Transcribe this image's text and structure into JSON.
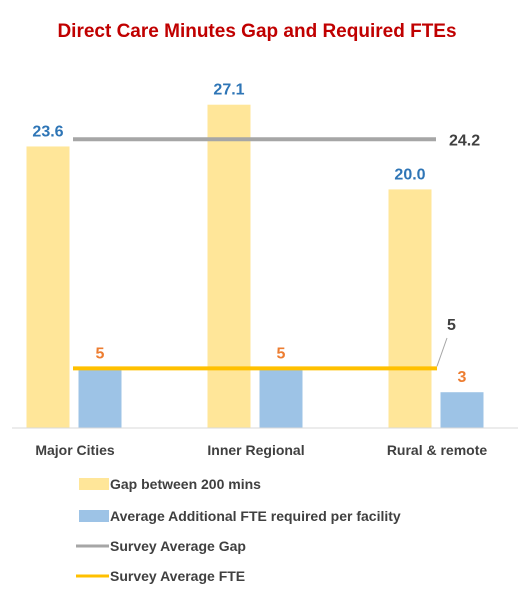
{
  "chart_data": {
    "type": "bar",
    "title": "Direct Care Minutes Gap and Required FTEs",
    "categories": [
      "Major Cities",
      "Inner Regional",
      "Rural & remote"
    ],
    "series": [
      {
        "name": "Gap between 200 mins",
        "kind": "bar",
        "values": [
          23.6,
          27.1,
          20.0
        ],
        "labels": [
          "23.6",
          "27.1",
          "20.0"
        ],
        "color": "#FFE699",
        "label_color": "#2E75B6"
      },
      {
        "name": "Average Additional FTE required per facility",
        "kind": "bar",
        "values": [
          5,
          5,
          3
        ],
        "labels": [
          "5",
          "5",
          "3"
        ],
        "color": "#9DC3E6",
        "label_color": "#ED7D31"
      }
    ],
    "lines": [
      {
        "name": "Survey Average Gap",
        "value": 24.2,
        "label": "24.2",
        "color": "#A6A6A6",
        "label_color": "#404040"
      },
      {
        "name": "Survey Average FTE",
        "value": 5,
        "label": "5",
        "color": "#FFC000",
        "label_color": "#404040"
      }
    ],
    "title_color": "#C00000",
    "ylim": [
      0,
      28.5
    ],
    "grid": false,
    "legend_position": "bottom"
  }
}
